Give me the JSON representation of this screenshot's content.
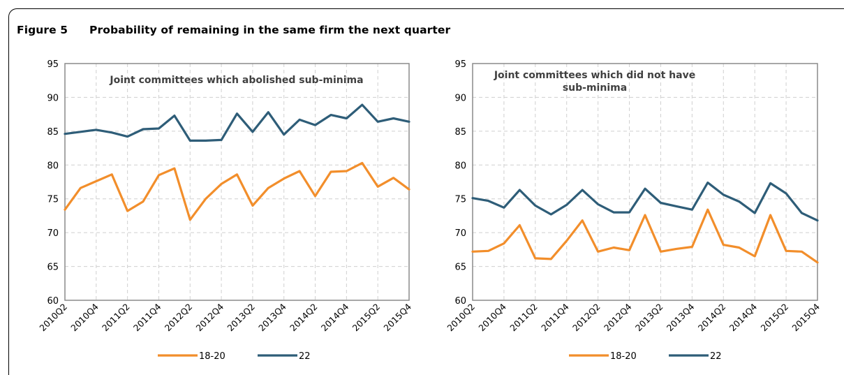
{
  "figure": {
    "label": "Figure 5",
    "title": "Probability of remaining in the same firm the next quarter"
  },
  "chart_data": [
    {
      "type": "line",
      "title": "Joint committees which abolished sub-minima",
      "title_lines": [
        "Joint committees which abolished sub-minima"
      ],
      "xlabel": "",
      "ylabel": "",
      "ylim": [
        60,
        95
      ],
      "yticks": [
        60,
        65,
        70,
        75,
        80,
        85,
        90,
        95
      ],
      "grid": true,
      "legend": "bottom",
      "x": [
        "2010Q2",
        "2010Q3",
        "2010Q4",
        "2011Q1",
        "2011Q2",
        "2011Q3",
        "2011Q4",
        "2012Q1",
        "2012Q2",
        "2012Q3",
        "2012Q4",
        "2013Q1",
        "2013Q2",
        "2013Q3",
        "2013Q4",
        "2014Q1",
        "2014Q2",
        "2014Q3",
        "2014Q4",
        "2015Q1",
        "2015Q2",
        "2015Q3",
        "2015Q4"
      ],
      "xtick_labels": [
        "2010Q2",
        "2010Q4",
        "2011Q2",
        "2011Q4",
        "2012Q2",
        "2012Q4",
        "2013Q2",
        "2013Q4",
        "2014Q2",
        "2014Q4",
        "2015Q2",
        "2015Q4"
      ],
      "series": [
        {
          "name": "18-20",
          "color": "#f28e2b",
          "values": [
            73.4,
            76.6,
            77.6,
            78.6,
            73.2,
            74.6,
            78.5,
            79.5,
            71.9,
            75.0,
            77.2,
            78.6,
            74.0,
            76.6,
            78.0,
            79.1,
            75.4,
            79.0,
            79.1,
            80.3,
            76.8,
            78.1,
            76.4
          ]
        },
        {
          "name": "22",
          "color": "#2e5d78",
          "values": [
            84.6,
            84.9,
            85.2,
            84.8,
            84.2,
            85.3,
            85.4,
            87.3,
            83.6,
            83.6,
            83.7,
            87.6,
            84.9,
            87.8,
            84.5,
            86.7,
            85.9,
            87.4,
            86.9,
            88.9,
            86.4,
            86.9,
            86.4
          ]
        }
      ]
    },
    {
      "type": "line",
      "title": "Joint committees which did not have sub-minima",
      "title_lines": [
        "Joint committees which did not have",
        "sub-minima"
      ],
      "xlabel": "",
      "ylabel": "",
      "ylim": [
        60,
        95
      ],
      "yticks": [
        60,
        65,
        70,
        75,
        80,
        85,
        90,
        95
      ],
      "grid": true,
      "legend": "bottom",
      "x": [
        "2010Q2",
        "2010Q3",
        "2010Q4",
        "2011Q1",
        "2011Q2",
        "2011Q3",
        "2011Q4",
        "2012Q1",
        "2012Q2",
        "2012Q3",
        "2012Q4",
        "2013Q1",
        "2013Q2",
        "2013Q3",
        "2013Q4",
        "2014Q1",
        "2014Q2",
        "2014Q3",
        "2014Q4",
        "2015Q1",
        "2015Q2",
        "2015Q3",
        "2015Q4"
      ],
      "xtick_labels": [
        "2010Q2",
        "2010Q4",
        "2011Q2",
        "2011Q4",
        "2012Q2",
        "2012Q4",
        "2013Q2",
        "2013Q4",
        "2014Q2",
        "2014Q4",
        "2015Q2",
        "2015Q4"
      ],
      "series": [
        {
          "name": "18-20",
          "color": "#f28e2b",
          "values": [
            67.2,
            67.3,
            68.4,
            71.1,
            66.2,
            66.1,
            68.8,
            71.8,
            67.2,
            67.8,
            67.4,
            72.6,
            67.2,
            67.6,
            67.9,
            73.4,
            68.2,
            67.8,
            66.5,
            72.6,
            67.3,
            67.2,
            65.6
          ]
        },
        {
          "name": "22",
          "color": "#2e5d78",
          "values": [
            75.1,
            74.7,
            73.7,
            76.3,
            74.0,
            72.7,
            74.1,
            76.3,
            74.2,
            73.0,
            73.0,
            76.5,
            74.4,
            73.9,
            73.4,
            77.4,
            75.6,
            74.6,
            72.9,
            77.3,
            75.8,
            72.9,
            71.8
          ]
        }
      ]
    }
  ]
}
